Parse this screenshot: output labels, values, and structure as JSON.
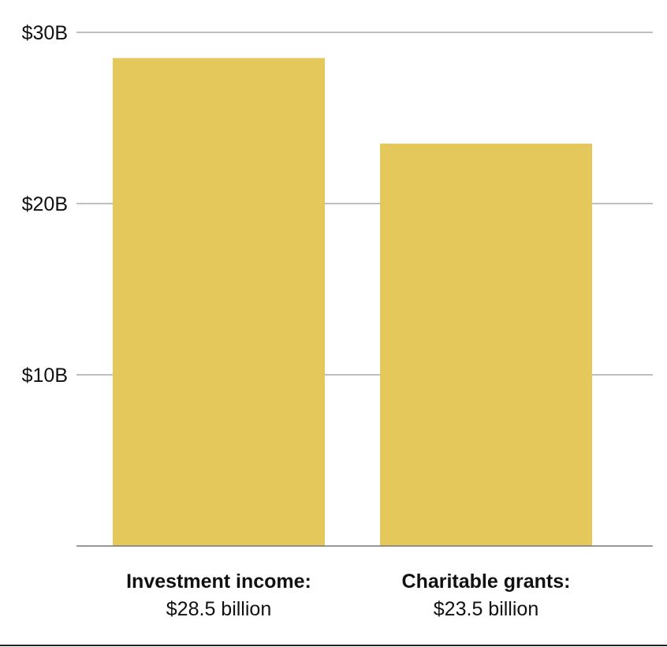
{
  "chart_data": {
    "type": "bar",
    "categories": [
      "Investment income:",
      "Charitable grants:"
    ],
    "value_labels": [
      "$28.5 billion",
      "$23.5 billion"
    ],
    "values": [
      28.5,
      23.5
    ],
    "y_ticks": [
      {
        "value": 10,
        "label": "$10B"
      },
      {
        "value": 20,
        "label": "$20B"
      },
      {
        "value": 30,
        "label": "$30B"
      }
    ],
    "ylim": [
      0,
      30
    ],
    "grid": true,
    "title": "",
    "xlabel": "",
    "ylabel": "",
    "colors": {
      "bar": "#e5c85c",
      "grid": "#999999",
      "axis": "#777777",
      "text": "#111111"
    }
  }
}
